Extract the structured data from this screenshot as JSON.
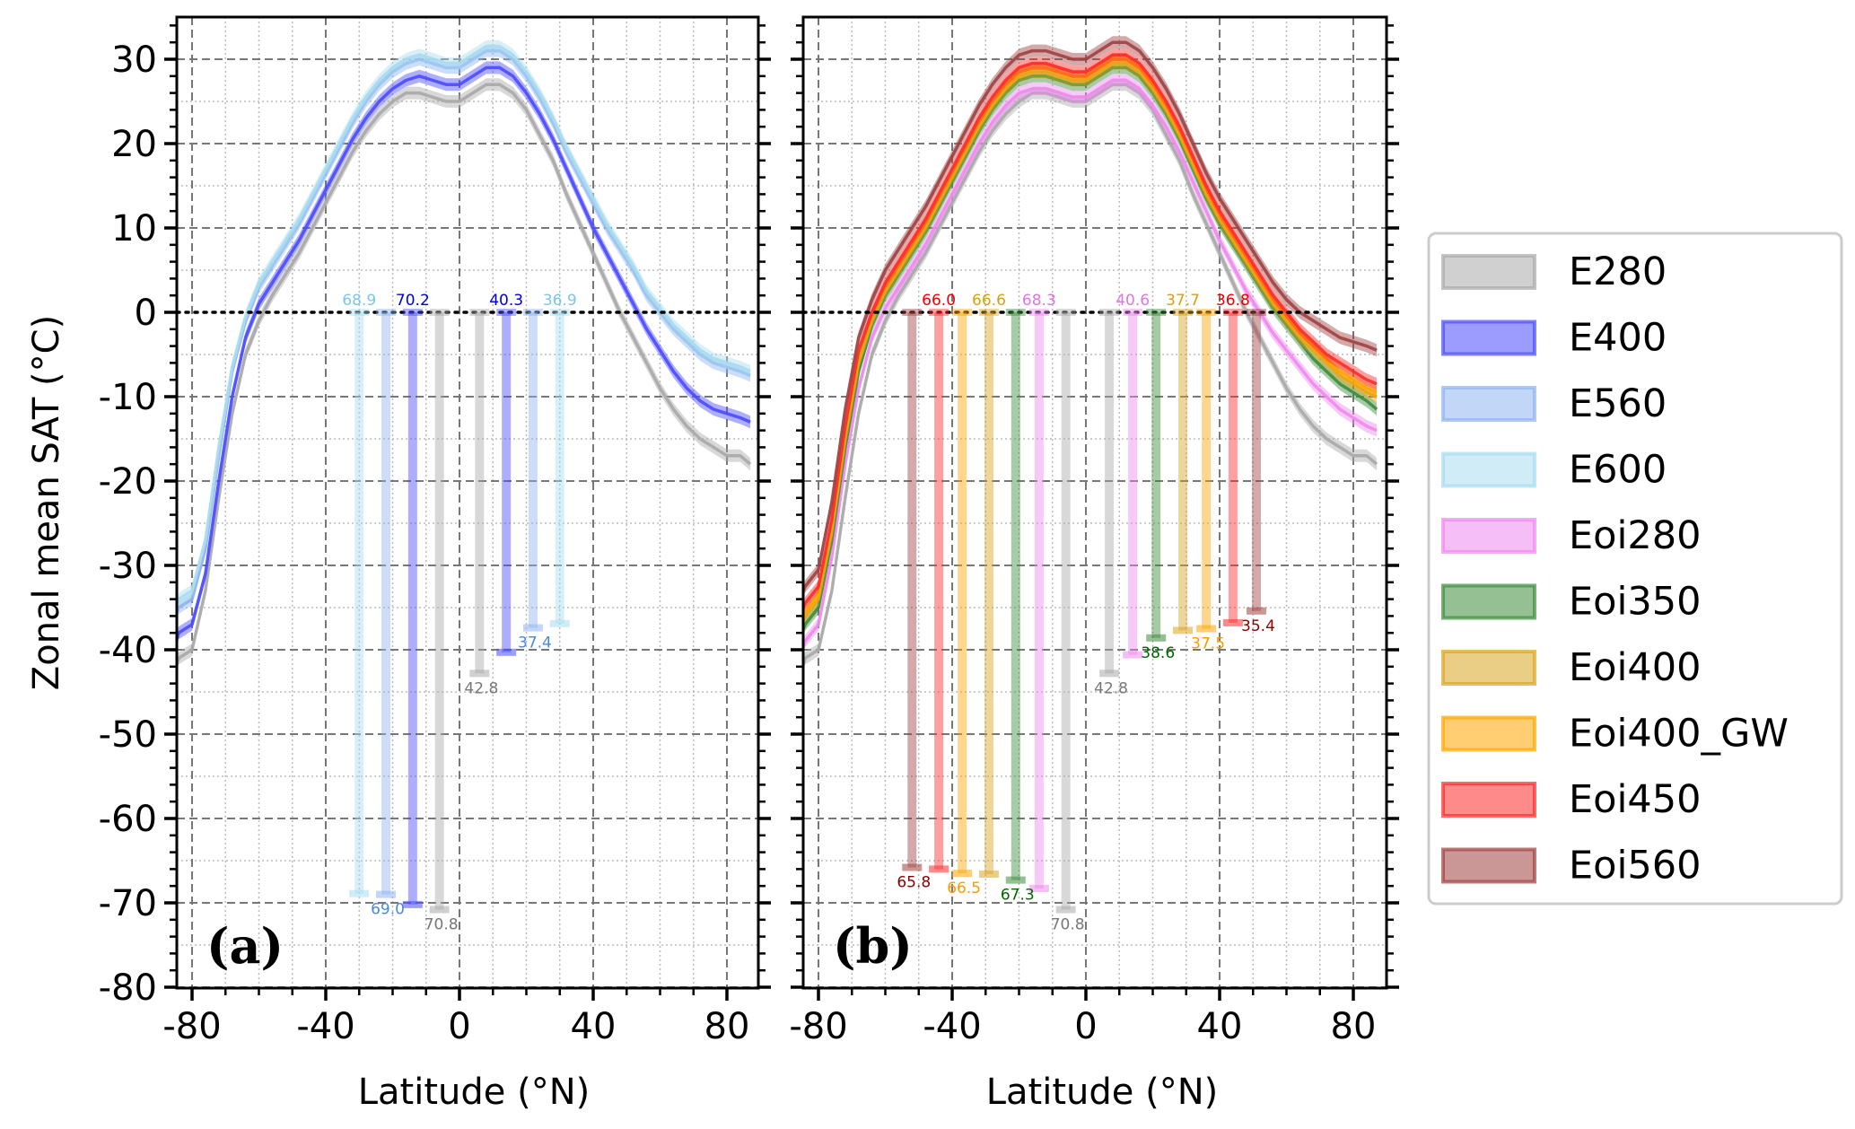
{
  "chart_data": [
    {
      "type": "line",
      "panel_label": "(a)",
      "xlabel": "Latitude (°N)",
      "ylabel": "Zonal mean SAT (°C)",
      "xlim": [
        -85,
        87
      ],
      "ylim": [
        -80,
        35
      ],
      "xticks": [
        -80,
        -40,
        0,
        40,
        80
      ],
      "yticks": [
        30,
        20,
        10,
        0,
        -10,
        -20,
        -30,
        -40,
        -50,
        -60,
        -70,
        -80
      ],
      "grid": true,
      "reference_line": 0,
      "x": [
        -87,
        -84,
        -80,
        -76,
        -72,
        -68,
        -64,
        -60,
        -56,
        -52,
        -48,
        -44,
        -40,
        -36,
        -32,
        -28,
        -24,
        -20,
        -16,
        -12,
        -8,
        -4,
        0,
        4,
        8,
        12,
        16,
        20,
        24,
        28,
        32,
        36,
        40,
        44,
        48,
        52,
        56,
        60,
        64,
        68,
        72,
        76,
        80,
        84,
        87
      ],
      "series": [
        {
          "name": "E280",
          "color": "#a9a9a9",
          "values": [
            -45,
            -41,
            -40,
            -33,
            -22,
            -12,
            -5,
            -1,
            2,
            4.5,
            7,
            10,
            13,
            16,
            19,
            21.5,
            23.5,
            25,
            26,
            26,
            25.5,
            25,
            25,
            26,
            27,
            27,
            26,
            24,
            21,
            18,
            14,
            10.5,
            7,
            3.5,
            0,
            -3,
            -6,
            -9,
            -11.5,
            -13.5,
            -15,
            -16,
            -17,
            -17,
            -18
          ]
        },
        {
          "name": "E400",
          "color": "#4b4bff",
          "values": [
            -42,
            -38,
            -37,
            -31,
            -20,
            -10,
            -3,
            1,
            3.5,
            6,
            8.5,
            11.5,
            14.5,
            17.5,
            20.5,
            23,
            25,
            26.5,
            27.5,
            28,
            27.5,
            27,
            27,
            28,
            29,
            29,
            28,
            26,
            23.5,
            20.5,
            17,
            13.5,
            10,
            7,
            4,
            1,
            -2,
            -4.5,
            -7,
            -9,
            -10.5,
            -11.5,
            -12,
            -12.5,
            -13
          ]
        },
        {
          "name": "E560",
          "color": "#8fb4f0",
          "values": [
            -38,
            -35,
            -34,
            -28,
            -17,
            -7,
            -1,
            3,
            5.5,
            8,
            10.5,
            13.5,
            16.5,
            19.5,
            22.5,
            25,
            27,
            28.5,
            29.5,
            30,
            29.5,
            29,
            29,
            30,
            31,
            31,
            30,
            28,
            25.5,
            22.5,
            19,
            16,
            13,
            10,
            7.5,
            5,
            2,
            0,
            -2,
            -3.5,
            -5,
            -6,
            -6.5,
            -7,
            -7.5
          ]
        },
        {
          "name": "E600",
          "color": "#a8dcf0",
          "values": [
            -37,
            -34,
            -33,
            -27,
            -16,
            -6.5,
            -0.5,
            3.5,
            6,
            8.5,
            11,
            14,
            17,
            20,
            23,
            25.5,
            27.5,
            29,
            30,
            30.5,
            30,
            29.5,
            29.5,
            30.5,
            31.5,
            31.5,
            30.5,
            28.5,
            26,
            23,
            19.5,
            16.5,
            13.5,
            10.5,
            8,
            5.5,
            2.5,
            0.5,
            -1.5,
            -3,
            -4.5,
            -5.5,
            -6,
            -6.5,
            -7
          ]
        }
      ],
      "annotations": [
        {
          "series": "E600",
          "lat": -30,
          "label": "68.9",
          "top": 0,
          "bottom": -68.9,
          "label_at": "top"
        },
        {
          "series": "E560",
          "lat": -22,
          "label": "69.0",
          "top": 0,
          "bottom": -69.0,
          "label_at": "bottom"
        },
        {
          "series": "E400",
          "lat": -14,
          "label": "70.2",
          "top": 0,
          "bottom": -70.2,
          "label_at": "top"
        },
        {
          "series": "E280",
          "lat": -6,
          "label": "70.8",
          "top": 0,
          "bottom": -70.8,
          "label_at": "bottom"
        },
        {
          "series": "E280",
          "lat": 6,
          "label": "42.8",
          "top": 0,
          "bottom": -42.8,
          "label_at": "bottom"
        },
        {
          "series": "E400",
          "lat": 14,
          "label": "40.3",
          "top": 0,
          "bottom": -40.3,
          "label_at": "top"
        },
        {
          "series": "E560",
          "lat": 22,
          "label": "37.4",
          "top": 0,
          "bottom": -37.4,
          "label_at": "bottom"
        },
        {
          "series": "E600",
          "lat": 30,
          "label": "36.9",
          "top": 0,
          "bottom": -36.9,
          "label_at": "top"
        }
      ]
    },
    {
      "type": "line",
      "panel_label": "(b)",
      "xlabel": "Latitude (°N)",
      "ylabel": "",
      "xlim": [
        -85,
        87
      ],
      "ylim": [
        -80,
        35
      ],
      "xticks": [
        -80,
        -40,
        0,
        40,
        80
      ],
      "yticks": [
        30,
        20,
        10,
        0,
        -10,
        -20,
        -30,
        -40,
        -50,
        -60,
        -70,
        -80
      ],
      "grid": true,
      "reference_line": 0,
      "x": [
        -87,
        -84,
        -80,
        -76,
        -72,
        -68,
        -64,
        -60,
        -56,
        -52,
        -48,
        -44,
        -40,
        -36,
        -32,
        -28,
        -24,
        -20,
        -16,
        -12,
        -8,
        -4,
        0,
        4,
        8,
        12,
        16,
        20,
        24,
        28,
        32,
        36,
        40,
        44,
        48,
        52,
        56,
        60,
        64,
        68,
        72,
        76,
        80,
        84,
        87
      ],
      "series": [
        {
          "name": "E280",
          "color": "#a9a9a9",
          "values": [
            -45,
            -41,
            -40,
            -33,
            -22,
            -12,
            -5,
            -1,
            2,
            4.5,
            7,
            10,
            13,
            16,
            19,
            21.5,
            23.5,
            25,
            26,
            26,
            25.5,
            25,
            25,
            26,
            27,
            27,
            26,
            24,
            21,
            18,
            14,
            10.5,
            7,
            3.5,
            0,
            -3,
            -6,
            -9,
            -11.5,
            -13.5,
            -15,
            -16,
            -17,
            -17,
            -18
          ]
        },
        {
          "name": "Eoi280",
          "color": "#ee88ee",
          "values": [
            -42,
            -39,
            -37,
            -29,
            -18,
            -9,
            -3,
            0.5,
            3,
            5.5,
            8,
            11,
            14,
            17,
            20,
            22.5,
            24.5,
            26,
            26.5,
            26.5,
            26,
            25.5,
            25.5,
            26.5,
            27.5,
            27.5,
            26.5,
            24.5,
            22,
            19,
            15.5,
            12,
            8.5,
            5.5,
            2.5,
            0,
            -2.5,
            -4.5,
            -6.5,
            -8.5,
            -10,
            -11.5,
            -12.5,
            -13.5,
            -14
          ]
        },
        {
          "name": "Eoi350",
          "color": "#3c8c3c",
          "values": [
            -40,
            -37,
            -35,
            -27,
            -16,
            -7,
            -1.5,
            2,
            4.5,
            7,
            9.5,
            12.5,
            15.5,
            18.5,
            21.5,
            24,
            26,
            27.5,
            28,
            28,
            27.5,
            27,
            27,
            28,
            29,
            29,
            28,
            26,
            23.5,
            20.5,
            17,
            13.5,
            10.5,
            8,
            5.5,
            3,
            0.5,
            -1.5,
            -3.5,
            -5.5,
            -7,
            -8.5,
            -9.5,
            -10.5,
            -11.5
          ]
        },
        {
          "name": "Eoi400",
          "color": "#daa520",
          "values": [
            -39,
            -36,
            -34,
            -26,
            -15,
            -6,
            -1,
            2.5,
            5,
            7.5,
            10,
            13,
            16,
            19,
            22,
            24.5,
            26.5,
            28,
            28.5,
            28.5,
            28,
            27.5,
            27.5,
            28.5,
            29.5,
            29.5,
            28.5,
            26.5,
            24,
            21,
            17.5,
            14,
            11,
            8.5,
            6,
            3.5,
            1,
            -1,
            -3,
            -4.5,
            -6,
            -7.5,
            -8.5,
            -9.5,
            -10
          ]
        },
        {
          "name": "Eoi400_GW",
          "color": "#ffa500",
          "values": [
            -38.5,
            -35.5,
            -33.5,
            -25.5,
            -14.5,
            -5.5,
            -0.5,
            3,
            5.5,
            8,
            10.5,
            13.5,
            16.5,
            19.5,
            22.5,
            25,
            27,
            28.5,
            29,
            29,
            28.5,
            28,
            28,
            29,
            30,
            30,
            29,
            27,
            24.5,
            21.5,
            18,
            14.5,
            11.5,
            9,
            6.5,
            4,
            1.5,
            -0.5,
            -2.5,
            -4,
            -5.5,
            -7,
            -8,
            -9,
            -9.5
          ]
        },
        {
          "name": "Eoi450",
          "color": "#ff2a2a",
          "values": [
            -37.5,
            -34.5,
            -32.5,
            -24.5,
            -13.5,
            -4.5,
            0,
            3.5,
            6,
            8.5,
            11,
            14,
            17,
            20,
            23,
            25.5,
            27.5,
            29,
            29.5,
            29.5,
            29,
            28.5,
            28.5,
            29.5,
            30.5,
            30.5,
            29.5,
            27.5,
            25,
            22,
            18.5,
            15,
            12,
            9.5,
            7,
            4.5,
            2,
            0,
            -2,
            -3.5,
            -5,
            -6,
            -7,
            -8,
            -8.5
          ]
        },
        {
          "name": "Eoi560",
          "color": "#a04040",
          "values": [
            -35.5,
            -32.5,
            -30.5,
            -22.5,
            -11.5,
            -3,
            1.5,
            5,
            7.5,
            10,
            12.5,
            15.5,
            18.5,
            21.5,
            24.5,
            27,
            29,
            30.5,
            31,
            31,
            30.5,
            30,
            30,
            31,
            32,
            32,
            31,
            29,
            26.5,
            23.5,
            20,
            16.5,
            13.5,
            11,
            8.5,
            6,
            3.5,
            1.5,
            0,
            -1,
            -2,
            -3,
            -3.5,
            -4,
            -4.5
          ]
        }
      ],
      "annotations": [
        {
          "series": "Eoi560",
          "lat": -52,
          "label": "65.8",
          "top": 0,
          "bottom": -65.8,
          "label_at": "bottom"
        },
        {
          "series": "Eoi450",
          "lat": -44,
          "label": "66.0",
          "top": 0,
          "bottom": -66.0,
          "label_at": "top"
        },
        {
          "series": "Eoi400_GW",
          "lat": -37,
          "label": "66.5",
          "top": 0,
          "bottom": -66.5,
          "label_at": "bottom"
        },
        {
          "series": "Eoi400",
          "lat": -29,
          "label": "66.6",
          "top": 0,
          "bottom": -66.6,
          "label_at": "top"
        },
        {
          "series": "Eoi350",
          "lat": -21,
          "label": "67.3",
          "top": 0,
          "bottom": -67.3,
          "label_at": "bottom"
        },
        {
          "series": "Eoi280",
          "lat": -14,
          "label": "68.3",
          "top": 0,
          "bottom": -68.3,
          "label_at": "top"
        },
        {
          "series": "E280",
          "lat": -6,
          "label": "70.8",
          "top": 0,
          "bottom": -70.8,
          "label_at": "bottom"
        },
        {
          "series": "E280",
          "lat": 7,
          "label": "42.8",
          "top": 0,
          "bottom": -42.8,
          "label_at": "bottom"
        },
        {
          "series": "Eoi280",
          "lat": 14,
          "label": "40.6",
          "top": 0,
          "bottom": -40.6,
          "label_at": "top"
        },
        {
          "series": "Eoi350",
          "lat": 21,
          "label": "38.6",
          "top": 0,
          "bottom": -38.6,
          "label_at": "bottom"
        },
        {
          "series": "Eoi400",
          "lat": 29,
          "label": "37.7",
          "top": 0,
          "bottom": -37.7,
          "label_at": "top"
        },
        {
          "series": "Eoi400_GW",
          "lat": 36,
          "label": "37.5",
          "top": 0,
          "bottom": -37.5,
          "label_at": "bottom"
        },
        {
          "series": "Eoi450",
          "lat": 44,
          "label": "36.8",
          "top": 0,
          "bottom": -36.8,
          "label_at": "top"
        },
        {
          "series": "Eoi560",
          "lat": 51,
          "label": "35.4",
          "top": 0,
          "bottom": -35.4,
          "label_at": "bottom"
        }
      ]
    }
  ],
  "legend": {
    "placement": "right",
    "entries": [
      {
        "name": "E280",
        "color": "#a9a9a9",
        "label_color": "#777777"
      },
      {
        "name": "E400",
        "color": "#4b4bff",
        "label_color": "#0000dd"
      },
      {
        "name": "E560",
        "color": "#8fb4f0",
        "label_color": "#4a88e0"
      },
      {
        "name": "E600",
        "color": "#a8dcf0",
        "label_color": "#7cc6ea"
      },
      {
        "name": "Eoi280",
        "color": "#ee88ee",
        "label_color": "#dd77dd"
      },
      {
        "name": "Eoi350",
        "color": "#3c8c3c",
        "label_color": "#006400"
      },
      {
        "name": "Eoi400",
        "color": "#daa520",
        "label_color": "#d4a017"
      },
      {
        "name": "Eoi400_GW",
        "color": "#ffa500",
        "label_color": "#ff9900"
      },
      {
        "name": "Eoi450",
        "color": "#ff2a2a",
        "label_color": "#ee0000"
      },
      {
        "name": "Eoi560",
        "color": "#a04040",
        "label_color": "#8b0000"
      }
    ]
  }
}
